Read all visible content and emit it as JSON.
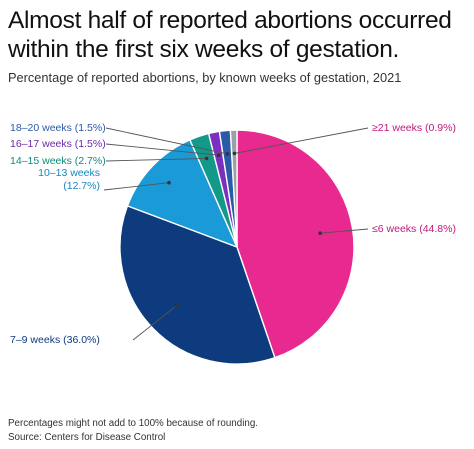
{
  "title": "Almost half of reported abortions occurred within the first six weeks of gestation.",
  "subtitle": "Percentage of reported abortions, by known weeks of gestation, 2021",
  "note": "Percentages might not add to 100% because of rounding.",
  "source": "Source: Centers for Disease Control",
  "chart_data": {
    "type": "pie",
    "start": "top, clockwise",
    "slices": [
      {
        "label": "≤6 weeks (44.8%)",
        "category": "≤6 weeks",
        "value": 44.8,
        "color": "#e8298f",
        "label_color": "#c2187a"
      },
      {
        "label": "7–9 weeks (36.0%)",
        "category": "7–9 weeks",
        "value": 36.0,
        "color": "#0e3a7e",
        "label_color": "#0e3a7e"
      },
      {
        "label": "10–13 weeks (12.7%)",
        "category": "10–13 weeks",
        "value": 12.7,
        "color": "#1a9ad6",
        "label_color": "#1787bf"
      },
      {
        "label": "14–15 weeks (2.7%)",
        "category": "14–15 weeks",
        "value": 2.7,
        "color": "#13998a",
        "label_color": "#0f8a7a"
      },
      {
        "label": "16–17 weeks (1.5%)",
        "category": "16–17 weeks",
        "value": 1.5,
        "color": "#7b2fbf",
        "label_color": "#6a2aaa"
      },
      {
        "label": "18–20 weeks (1.5%)",
        "category": "18–20 weeks",
        "value": 1.5,
        "color": "#2b5aa8",
        "label_color": "#2b5aa8"
      },
      {
        "label": "≥21 weeks (0.9%)",
        "category": "≥21 weeks",
        "value": 0.9,
        "color": "#9aa0a8",
        "label_color": "#c2187a"
      }
    ]
  }
}
